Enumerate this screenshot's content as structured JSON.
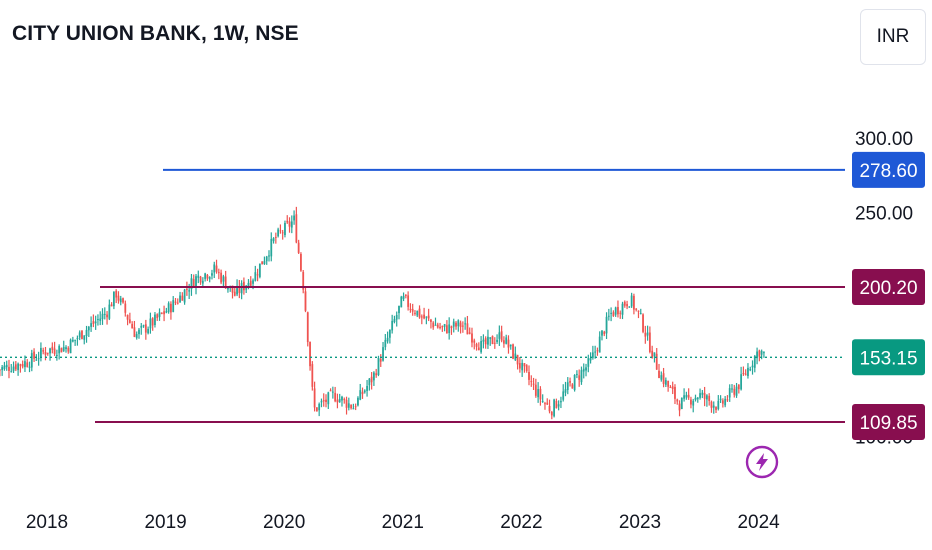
{
  "header": {
    "title": "CITY UNION BANK, 1W, NSE",
    "currency_button": "INR"
  },
  "colors": {
    "up": "#26a69a",
    "down": "#ef5350",
    "resistance_line": "#880e4f",
    "target_line": "#1e58d6",
    "last_price": "#089981",
    "flash_icon": "#9c27b0"
  },
  "chart_data": {
    "type": "candlestick",
    "title": "CITY UNION BANK, 1W, NSE",
    "interval": "1W",
    "exchange": "NSE",
    "currency": "INR",
    "x_ticks": [
      "2018",
      "2019",
      "2020",
      "2021",
      "2022",
      "2023",
      "2024"
    ],
    "y_ticks": [
      "300.00",
      "250.00",
      "200.00",
      "150.00",
      "100.00"
    ],
    "ylim": [
      80,
      310
    ],
    "grid": false,
    "horizontal_lines": [
      {
        "name": "target",
        "value": 278.6,
        "label": "278.60"
      },
      {
        "name": "resistance",
        "value": 200.2,
        "label": "200.20"
      },
      {
        "name": "support",
        "value": 109.85,
        "label": "109.85"
      }
    ],
    "last_price": {
      "value": 153.15,
      "label": "153.15"
    },
    "price_path": [
      [
        "2017-08",
        145
      ],
      [
        "2017-11",
        150
      ],
      [
        "2018-01",
        158
      ],
      [
        "2018-03",
        160
      ],
      [
        "2018-05",
        172
      ],
      [
        "2018-07",
        183
      ],
      [
        "2018-08",
        196
      ],
      [
        "2018-10",
        168
      ],
      [
        "2018-12",
        178
      ],
      [
        "2019-02",
        190
      ],
      [
        "2019-04",
        206
      ],
      [
        "2019-06",
        212
      ],
      [
        "2019-08",
        195
      ],
      [
        "2019-10",
        208
      ],
      [
        "2019-12",
        232
      ],
      [
        "2020-02",
        245
      ],
      [
        "2020-03",
        198
      ],
      [
        "2020-04",
        118
      ],
      [
        "2020-06",
        128
      ],
      [
        "2020-08",
        120
      ],
      [
        "2020-10",
        140
      ],
      [
        "2020-12",
        175
      ],
      [
        "2021-01",
        192
      ],
      [
        "2021-03",
        180
      ],
      [
        "2021-05",
        172
      ],
      [
        "2021-07",
        175
      ],
      [
        "2021-09",
        160
      ],
      [
        "2021-11",
        168
      ],
      [
        "2022-01",
        146
      ],
      [
        "2022-03",
        125
      ],
      [
        "2022-04",
        118
      ],
      [
        "2022-06",
        135
      ],
      [
        "2022-08",
        150
      ],
      [
        "2022-10",
        182
      ],
      [
        "2022-12",
        192
      ],
      [
        "2023-01",
        180
      ],
      [
        "2023-03",
        142
      ],
      [
        "2023-05",
        122
      ],
      [
        "2023-07",
        128
      ],
      [
        "2023-09",
        120
      ],
      [
        "2023-11",
        135
      ],
      [
        "2024-01",
        158
      ],
      [
        "2024-02",
        153
      ]
    ]
  }
}
